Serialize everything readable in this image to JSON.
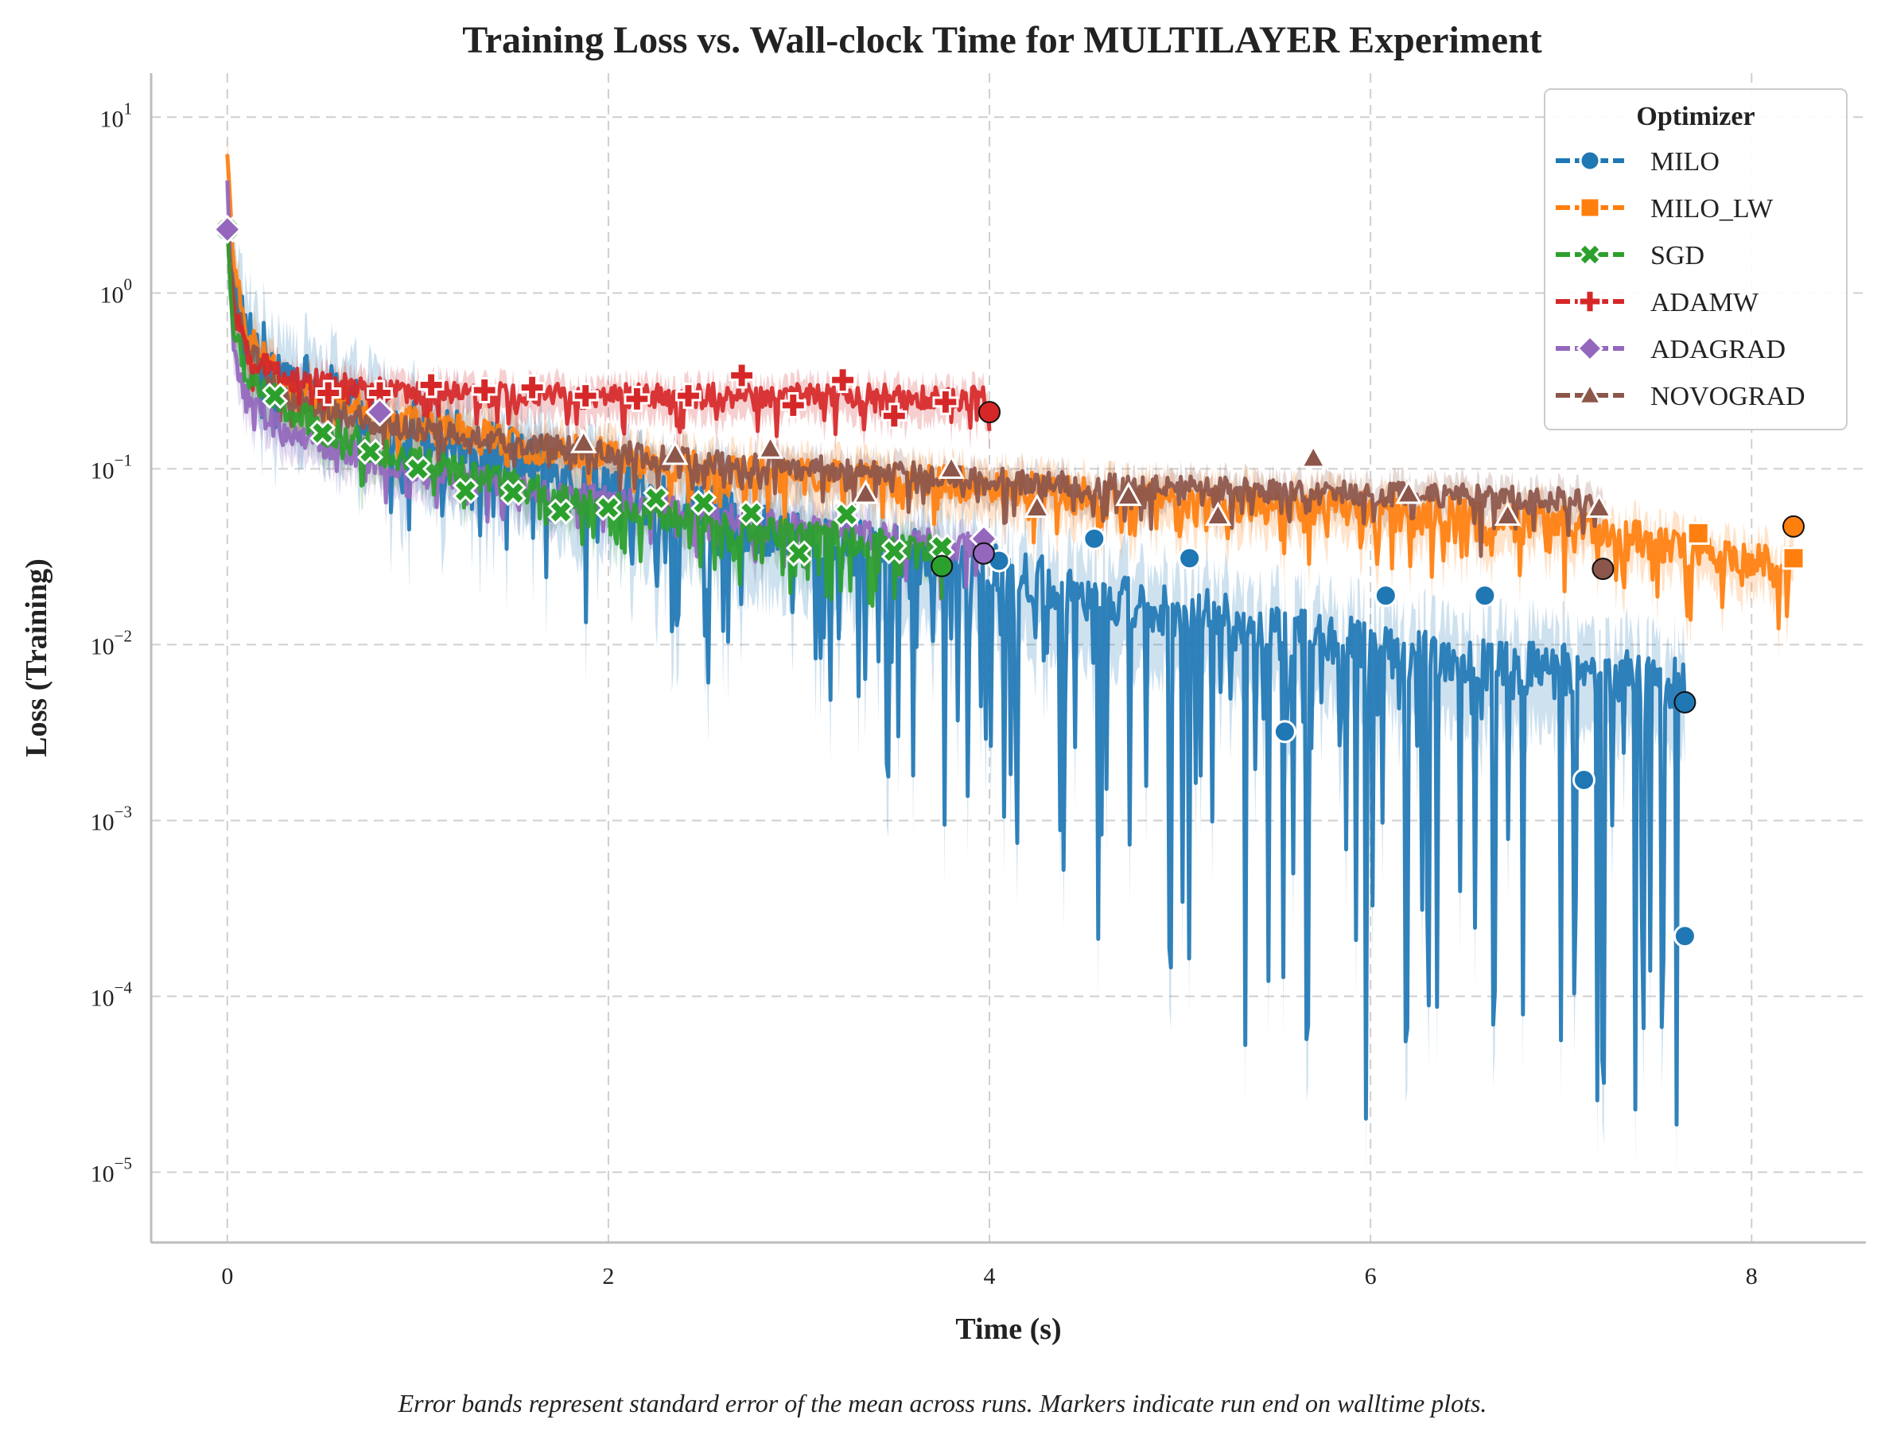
{
  "chart_data": {
    "type": "line",
    "title": "Training Loss vs. Wall-clock Time for MULTILAYER Experiment",
    "xlabel": "Time (s)",
    "ylabel": "Loss (Training)",
    "xlim": [
      -0.4,
      8.6
    ],
    "ylim_log10": [
      -5.4,
      1.25
    ],
    "yscale": "log",
    "xticks": [
      0,
      2,
      4,
      6,
      8
    ],
    "xtick_labels": [
      "0",
      "2",
      "4",
      "6",
      "8"
    ],
    "yticks": [
      {
        "exp": 1,
        "label": "10",
        "sup": "1"
      },
      {
        "exp": 0,
        "label": "10",
        "sup": "0"
      },
      {
        "exp": -1,
        "label": "10",
        "sup": "−1"
      },
      {
        "exp": -2,
        "label": "10",
        "sup": "−2"
      },
      {
        "exp": -3,
        "label": "10",
        "sup": "−3"
      },
      {
        "exp": -4,
        "label": "10",
        "sup": "−4"
      },
      {
        "exp": -5,
        "label": "10",
        "sup": "−5"
      }
    ],
    "grid": true,
    "legend_position": "top-right",
    "legend_title": "Optimizer",
    "caption": "Error bands represent standard error of the mean across runs. Markers indicate run end on walltime plots.",
    "series": [
      {
        "name": "MILO",
        "color": "#1f77b4",
        "marker": "circle",
        "t_end": 7.65,
        "trend": [
          [
            0,
            2.3
          ],
          [
            0.03,
            1.2
          ],
          [
            0.1,
            0.6
          ],
          [
            0.3,
            0.35
          ],
          [
            0.8,
            0.2
          ],
          [
            1.5,
            0.12
          ],
          [
            2.2,
            0.07
          ],
          [
            3.0,
            0.04
          ],
          [
            3.75,
            0.03
          ],
          [
            4.5,
            0.02
          ],
          [
            5.5,
            0.012
          ],
          [
            6.5,
            0.008
          ],
          [
            7.65,
            0.006
          ]
        ],
        "dip_depth": [
          [
            0,
            0.3
          ],
          [
            2.3,
            0.8
          ],
          [
            3.0,
            1.1
          ],
          [
            3.8,
            1.5
          ],
          [
            5.0,
            2.4
          ],
          [
            6.5,
            2.8
          ],
          [
            7.65,
            3.1
          ]
        ],
        "noise": 0.16,
        "band_width": 0.25,
        "markers": [
          [
            4.05,
            0.03
          ],
          [
            4.55,
            0.04
          ],
          [
            5.05,
            0.031
          ],
          [
            5.55,
            0.0032
          ],
          [
            6.08,
            0.019
          ],
          [
            6.6,
            0.019
          ],
          [
            7.12,
            0.0017
          ],
          [
            7.65,
            0.00022
          ]
        ],
        "end_marker": [
          7.65,
          0.0047
        ]
      },
      {
        "name": "MILO_LW",
        "color": "#ff7f0e",
        "marker": "square",
        "t_end": 8.22,
        "trend": [
          [
            0,
            6.5
          ],
          [
            0.03,
            1.5
          ],
          [
            0.1,
            0.6
          ],
          [
            0.3,
            0.3
          ],
          [
            0.8,
            0.2
          ],
          [
            1.5,
            0.14
          ],
          [
            2.5,
            0.1
          ],
          [
            4.0,
            0.08
          ],
          [
            5.0,
            0.065
          ],
          [
            6.0,
            0.06
          ],
          [
            7.0,
            0.05
          ],
          [
            7.4,
            0.04
          ],
          [
            7.8,
            0.032
          ],
          [
            8.22,
            0.028
          ]
        ],
        "dip_depth": [
          [
            0,
            0.15
          ],
          [
            8.22,
            0.35
          ]
        ],
        "noise": 0.1,
        "band_width": 0.12,
        "markers": [
          [
            7.72,
            0.043
          ],
          [
            8.22,
            0.031
          ]
        ],
        "end_marker": [
          8.22,
          0.047
        ]
      },
      {
        "name": "SGD",
        "color": "#2ca02c",
        "marker": "x",
        "t_end": 3.75,
        "trend": [
          [
            0,
            2.3
          ],
          [
            0.03,
            0.6
          ],
          [
            0.1,
            0.35
          ],
          [
            0.3,
            0.22
          ],
          [
            0.6,
            0.15
          ],
          [
            1.0,
            0.11
          ],
          [
            1.5,
            0.08
          ],
          [
            2.0,
            0.06
          ],
          [
            2.5,
            0.05
          ],
          [
            3.0,
            0.042
          ],
          [
            3.75,
            0.036
          ]
        ],
        "dip_depth": [
          [
            0,
            0.12
          ],
          [
            3.75,
            0.35
          ]
        ],
        "noise": 0.09,
        "band_width": 0.1,
        "markers": [
          [
            0,
            2.3
          ],
          [
            0.25,
            0.26
          ],
          [
            0.5,
            0.16
          ],
          [
            0.75,
            0.125
          ],
          [
            1.0,
            0.1
          ],
          [
            1.25,
            0.075
          ],
          [
            1.5,
            0.073
          ],
          [
            1.75,
            0.057
          ],
          [
            2.0,
            0.06
          ],
          [
            2.25,
            0.068
          ],
          [
            2.5,
            0.064
          ],
          [
            2.75,
            0.056
          ],
          [
            3.0,
            0.033
          ],
          [
            3.25,
            0.055
          ],
          [
            3.5,
            0.034
          ],
          [
            3.75,
            0.036
          ]
        ],
        "end_marker": [
          3.75,
          0.028
        ]
      },
      {
        "name": "ADAMW",
        "color": "#d62728",
        "marker": "plus",
        "t_end": 4.0,
        "trend": [
          [
            0,
            2.3
          ],
          [
            0.03,
            0.8
          ],
          [
            0.1,
            0.45
          ],
          [
            0.3,
            0.33
          ],
          [
            0.8,
            0.28
          ],
          [
            1.5,
            0.26
          ],
          [
            2.5,
            0.26
          ],
          [
            3.5,
            0.26
          ],
          [
            4.0,
            0.25
          ]
        ],
        "dip_depth": [
          [
            0,
            0.12
          ],
          [
            4.0,
            0.2
          ]
        ],
        "noise": 0.07,
        "band_width": 0.09,
        "markers": [
          [
            0.53,
            0.27
          ],
          [
            0.8,
            0.27
          ],
          [
            1.07,
            0.3
          ],
          [
            1.35,
            0.28
          ],
          [
            1.6,
            0.29
          ],
          [
            1.88,
            0.26
          ],
          [
            2.15,
            0.25
          ],
          [
            2.42,
            0.26
          ],
          [
            2.7,
            0.34
          ],
          [
            2.97,
            0.23
          ],
          [
            3.23,
            0.32
          ],
          [
            3.5,
            0.2
          ],
          [
            3.77,
            0.24
          ]
        ],
        "end_marker": [
          4.0,
          0.21
        ]
      },
      {
        "name": "ADAGRAD",
        "color": "#9467bd",
        "marker": "diamond",
        "t_end": 3.97,
        "trend": [
          [
            0,
            4.5
          ],
          [
            0.03,
            0.5
          ],
          [
            0.1,
            0.25
          ],
          [
            0.3,
            0.16
          ],
          [
            0.8,
            0.11
          ],
          [
            1.5,
            0.08
          ],
          [
            2.5,
            0.055
          ],
          [
            3.5,
            0.04
          ],
          [
            3.97,
            0.035
          ]
        ],
        "dip_depth": [
          [
            0,
            0.12
          ],
          [
            3.97,
            0.3
          ]
        ],
        "noise": 0.08,
        "band_width": 0.1,
        "markers": [
          [
            0,
            2.3
          ],
          [
            0.8,
            0.21
          ],
          [
            3.97,
            0.04
          ]
        ],
        "end_marker": [
          3.97,
          0.033
        ]
      },
      {
        "name": "NOVOGRAD",
        "color": "#8c564b",
        "marker": "triangle",
        "t_end": 7.22,
        "trend": [
          [
            0,
            2.3
          ],
          [
            0.03,
            1.0
          ],
          [
            0.1,
            0.5
          ],
          [
            0.3,
            0.25
          ],
          [
            0.8,
            0.18
          ],
          [
            1.5,
            0.14
          ],
          [
            2.5,
            0.11
          ],
          [
            3.5,
            0.095
          ],
          [
            4.5,
            0.08
          ],
          [
            5.5,
            0.075
          ],
          [
            6.5,
            0.07
          ],
          [
            7.22,
            0.065
          ]
        ],
        "dip_depth": [
          [
            0,
            0.1
          ],
          [
            7.22,
            0.3
          ]
        ],
        "noise": 0.07,
        "band_width": 0.09,
        "markers": [
          [
            1.87,
            0.14
          ],
          [
            2.35,
            0.12
          ],
          [
            2.85,
            0.13
          ],
          [
            3.35,
            0.072
          ],
          [
            3.8,
            0.1
          ],
          [
            4.25,
            0.06
          ],
          [
            4.73,
            0.07
          ],
          [
            5.2,
            0.054
          ],
          [
            5.7,
            0.115
          ],
          [
            6.2,
            0.072
          ],
          [
            6.72,
            0.054
          ],
          [
            7.2,
            0.06
          ]
        ],
        "end_marker": [
          7.22,
          0.027
        ]
      }
    ]
  }
}
